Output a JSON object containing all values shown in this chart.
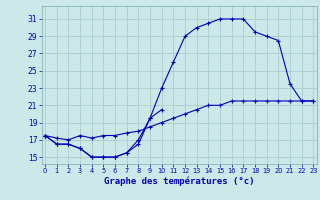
{
  "title": "Graphe des températures (°c)",
  "background_color": "#cce8e8",
  "grid_color": "#aacccc",
  "line_color": "#0000bb",
  "x_hours": [
    0,
    1,
    2,
    3,
    4,
    5,
    6,
    7,
    8,
    9,
    10,
    11,
    12,
    13,
    14,
    15,
    16,
    17,
    18,
    19,
    20,
    21,
    22,
    23
  ],
  "curve_upper": [
    17.5,
    16.5,
    16.5,
    16.0,
    15.0,
    15.0,
    15.0,
    15.5,
    17.0,
    19.5,
    23.0,
    26.0,
    29.0,
    30.0,
    30.5,
    31.0,
    31.0,
    31.0,
    29.5,
    29.0,
    28.5,
    23.5,
    21.5,
    21.5
  ],
  "curve_lower": [
    17.5,
    16.5,
    16.5,
    16.0,
    15.0,
    15.0,
    15.0,
    15.5,
    16.5,
    19.5,
    20.5,
    null,
    null,
    null,
    null,
    null,
    null,
    null,
    null,
    null,
    null,
    null,
    null,
    null
  ],
  "curve_flat": [
    17.5,
    17.2,
    17.0,
    17.5,
    17.2,
    17.5,
    17.5,
    17.8,
    18.0,
    18.5,
    19.0,
    19.5,
    20.0,
    20.5,
    21.0,
    21.0,
    21.5,
    21.5,
    21.5,
    21.5,
    21.5,
    21.5,
    21.5,
    21.5
  ],
  "ylim": [
    14.2,
    32.5
  ],
  "yticks": [
    15,
    17,
    19,
    21,
    23,
    25,
    27,
    29,
    31
  ],
  "xlim": [
    -0.3,
    23.3
  ],
  "xticks": [
    0,
    1,
    2,
    3,
    4,
    5,
    6,
    7,
    8,
    9,
    10,
    11,
    12,
    13,
    14,
    15,
    16,
    17,
    18,
    19,
    20,
    21,
    22,
    23
  ]
}
